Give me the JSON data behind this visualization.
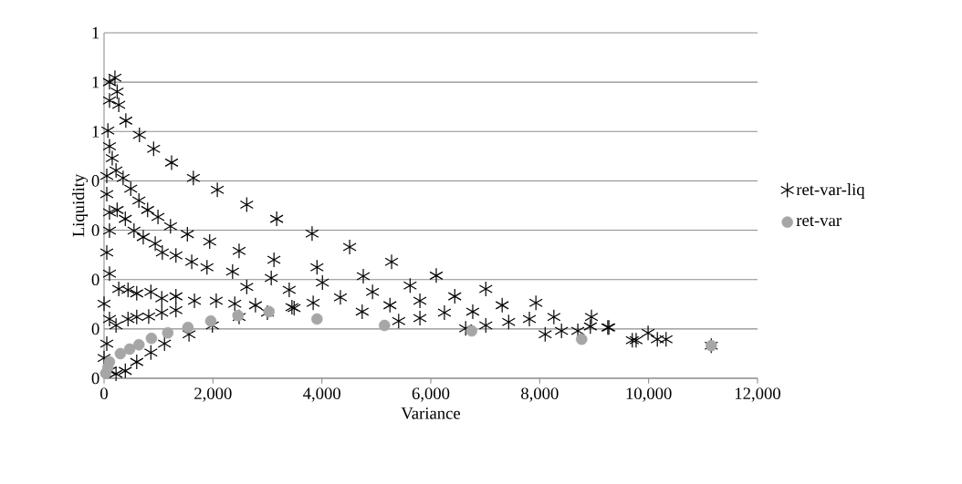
{
  "chart_data": {
    "type": "scatter",
    "xlabel": "Variance",
    "ylabel": "Liquidity",
    "xlim": [
      0,
      12000
    ],
    "ylim": [
      0,
      0.7
    ],
    "xticks": [
      0,
      {
        "value": 2000,
        "label": "2,000"
      },
      {
        "value": 4000,
        "label": "4,000"
      },
      {
        "value": 6000,
        "label": "6,000"
      },
      {
        "value": 8000,
        "label": "8,000"
      },
      {
        "value": 10000,
        "label": "10,000"
      },
      {
        "value": 12000,
        "label": "12,000"
      }
    ],
    "yticks": [
      0,
      {
        "value": 0.1,
        "label": "0"
      },
      {
        "value": 0.2,
        "label": "0"
      },
      {
        "value": 0.3,
        "label": "0"
      },
      {
        "value": 0.4,
        "label": "0"
      },
      {
        "value": 0.5,
        "label": "1"
      },
      {
        "value": 0.6,
        "label": "1"
      },
      {
        "value": 0.7,
        "label": "1"
      }
    ],
    "grid": "y",
    "legend": "right",
    "series": [
      {
        "name": "ret-var-liq",
        "color": "#000000",
        "marker": "cross",
        "x": [
          200,
          240,
          270,
          400,
          650,
          910,
          1240,
          1640,
          2080,
          2620,
          3170,
          3820,
          4510,
          5280,
          6100,
          7010,
          7930,
          8950,
          9270,
          9770,
          3120,
          3910,
          3400,
          3490,
          4010,
          3840,
          4340,
          4760,
          4930,
          4740,
          5250,
          5410,
          5620,
          5800,
          5800,
          6250,
          6440,
          6770,
          7010,
          7310,
          7430,
          7810,
          8100,
          8260,
          8400,
          8700,
          8930,
          6640,
          9990,
          9700,
          10160,
          10320,
          9250,
          11150,
          100,
          100,
          70,
          100,
          150,
          50,
          220,
          350,
          490,
          640,
          800,
          990,
          1220,
          1530,
          1940,
          2480,
          50,
          100,
          100,
          240,
          390,
          550,
          720,
          940,
          1070,
          1320,
          1610,
          1890,
          2360,
          2620,
          3070,
          50,
          100,
          270,
          440,
          600,
          860,
          1060,
          1320,
          1660,
          2060,
          2400,
          2780,
          3450,
          100,
          0,
          220,
          440,
          600,
          820,
          1060,
          1320,
          50,
          0,
          100,
          220,
          390,
          600,
          860,
          1110,
          1560,
          1990,
          2480,
          3000
        ],
        "values": [
          0.609,
          0.581,
          0.554,
          0.522,
          0.493,
          0.465,
          0.437,
          0.406,
          0.382,
          0.352,
          0.323,
          0.293,
          0.266,
          0.236,
          0.208,
          0.181,
          0.153,
          0.124,
          0.103,
          0.077,
          0.24,
          0.225,
          0.179,
          0.142,
          0.194,
          0.153,
          0.164,
          0.207,
          0.175,
          0.135,
          0.148,
          0.116,
          0.188,
          0.157,
          0.122,
          0.133,
          0.166,
          0.135,
          0.107,
          0.148,
          0.114,
          0.12,
          0.089,
          0.124,
          0.096,
          0.096,
          0.105,
          0.101,
          0.092,
          0.077,
          0.079,
          0.079,
          0.103,
          0.066,
          0.6,
          0.563,
          0.502,
          0.47,
          0.446,
          0.41,
          0.421,
          0.406,
          0.384,
          0.36,
          0.341,
          0.327,
          0.308,
          0.292,
          0.277,
          0.258,
          0.373,
          0.336,
          0.299,
          0.341,
          0.323,
          0.299,
          0.286,
          0.273,
          0.255,
          0.249,
          0.236,
          0.225,
          0.216,
          0.185,
          0.203,
          0.255,
          0.212,
          0.181,
          0.179,
          0.172,
          0.175,
          0.162,
          0.166,
          0.157,
          0.157,
          0.151,
          0.148,
          0.144,
          0.12,
          0.151,
          0.107,
          0.12,
          0.124,
          0.125,
          0.133,
          0.138,
          0.07,
          0.041,
          0.015,
          0.009,
          0.015,
          0.033,
          0.052,
          0.07,
          0.089,
          0.107,
          0.124,
          0.133
        ]
      },
      {
        "name": "ret-var",
        "color": "#a6a6a6",
        "marker": "circle",
        "x": [
          30,
          70,
          100,
          300,
          470,
          640,
          870,
          1170,
          1540,
          1960,
          2460,
          3030,
          3910,
          5150,
          6750,
          8770,
          11150
        ],
        "values": [
          0.01,
          0.022,
          0.033,
          0.05,
          0.059,
          0.068,
          0.081,
          0.092,
          0.103,
          0.116,
          0.127,
          0.135,
          0.12,
          0.107,
          0.096,
          0.079,
          0.066
        ]
      }
    ]
  }
}
